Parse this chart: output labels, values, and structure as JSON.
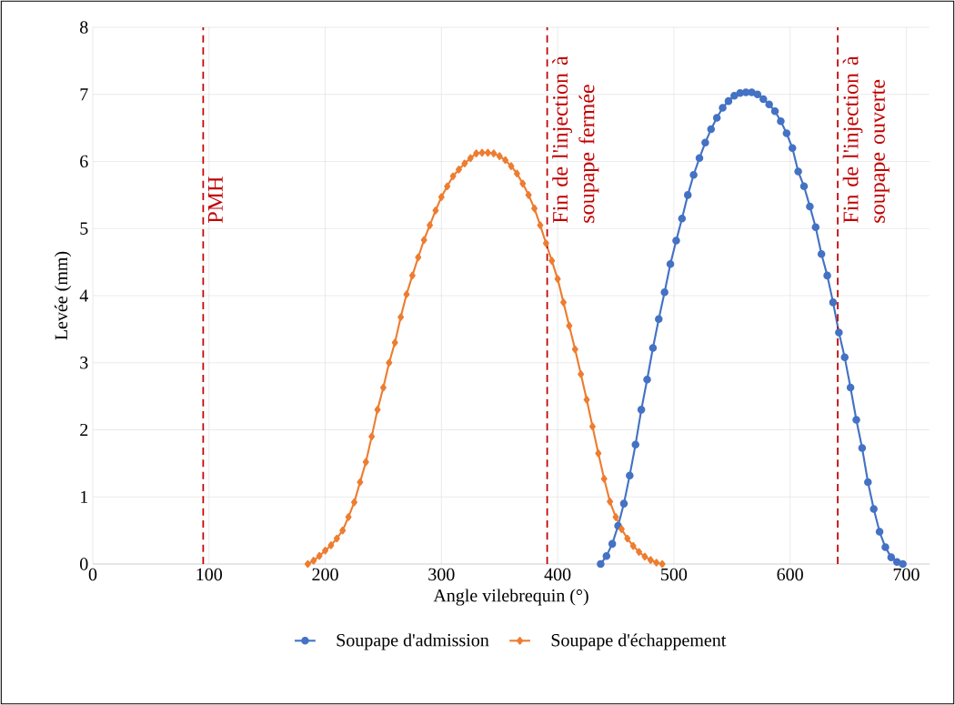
{
  "chart_data": {
    "type": "line",
    "xlabel": "Angle vilebrequin (°)",
    "ylabel": "Levée (mm)",
    "xlim": [
      0,
      720
    ],
    "xticks": [
      0,
      100,
      200,
      300,
      400,
      500,
      600,
      700
    ],
    "ylim": [
      0,
      8
    ],
    "yticks": [
      0,
      1,
      2,
      3,
      4,
      5,
      6,
      7,
      8
    ],
    "grid": true,
    "legend": "bottom",
    "series": [
      {
        "name": "Soupape d'admission",
        "color": "#4472c4",
        "marker": "circle",
        "x": [
          437,
          442,
          447,
          452,
          457,
          462,
          467,
          472,
          477,
          482,
          487,
          492,
          497,
          502,
          507,
          512,
          517,
          522,
          527,
          532,
          537,
          542,
          547,
          552,
          557,
          562,
          567,
          572,
          577,
          582,
          587,
          592,
          597,
          602,
          607,
          612,
          617,
          622,
          627,
          632,
          637,
          642,
          647,
          652,
          657,
          662,
          667,
          672,
          677,
          682,
          687,
          692,
          697
        ],
        "values": [
          0,
          0.12,
          0.3,
          0.57,
          0.9,
          1.32,
          1.78,
          2.3,
          2.75,
          3.22,
          3.65,
          4.05,
          4.47,
          4.82,
          5.15,
          5.5,
          5.8,
          6.05,
          6.28,
          6.48,
          6.65,
          6.8,
          6.9,
          6.98,
          7.02,
          7.03,
          7.03,
          7.0,
          6.93,
          6.85,
          6.75,
          6.6,
          6.42,
          6.2,
          5.85,
          5.63,
          5.33,
          5.02,
          4.62,
          4.3,
          3.9,
          3.45,
          3.08,
          2.63,
          2.15,
          1.73,
          1.22,
          0.82,
          0.48,
          0.25,
          0.1,
          0.03,
          0
        ]
      },
      {
        "name": "Soupape d'échappement",
        "color": "#ed7d31",
        "marker": "diamond",
        "x": [
          185,
          190,
          195,
          200,
          205,
          210,
          215,
          220,
          225,
          230,
          235,
          240,
          245,
          250,
          255,
          260,
          265,
          270,
          275,
          280,
          285,
          290,
          295,
          300,
          305,
          310,
          315,
          320,
          325,
          330,
          335,
          340,
          345,
          350,
          355,
          360,
          365,
          370,
          375,
          380,
          385,
          390,
          395,
          400,
          405,
          410,
          415,
          420,
          425,
          430,
          435,
          440,
          445,
          450,
          455,
          460,
          465,
          470,
          475,
          480,
          485,
          490
        ],
        "values": [
          0,
          0.05,
          0.12,
          0.2,
          0.28,
          0.38,
          0.5,
          0.7,
          0.92,
          1.22,
          1.52,
          1.9,
          2.3,
          2.63,
          3.0,
          3.3,
          3.68,
          4.02,
          4.3,
          4.57,
          4.83,
          5.05,
          5.27,
          5.47,
          5.63,
          5.78,
          5.88,
          5.97,
          6.05,
          6.12,
          6.13,
          6.13,
          6.12,
          6.08,
          6.02,
          5.93,
          5.82,
          5.67,
          5.5,
          5.3,
          5.05,
          4.78,
          4.52,
          4.25,
          3.9,
          3.55,
          3.2,
          2.83,
          2.45,
          2.05,
          1.65,
          1.27,
          0.93,
          0.7,
          0.52,
          0.38,
          0.27,
          0.18,
          0.11,
          0.06,
          0.02,
          0
        ]
      }
    ],
    "ref_lines": [
      {
        "axis": "x",
        "value": 95,
        "label": "PMH",
        "color": "#c00000",
        "line_style": "dashed"
      },
      {
        "axis": "x",
        "value": 391,
        "label": "Fin de l'injection à soupape fermée",
        "color": "#c00000",
        "line_style": "dashed"
      },
      {
        "axis": "x",
        "value": 641,
        "label": "Fin de l'injection à soupape ouverte",
        "color": "#c00000",
        "line_style": "dashed"
      }
    ]
  }
}
